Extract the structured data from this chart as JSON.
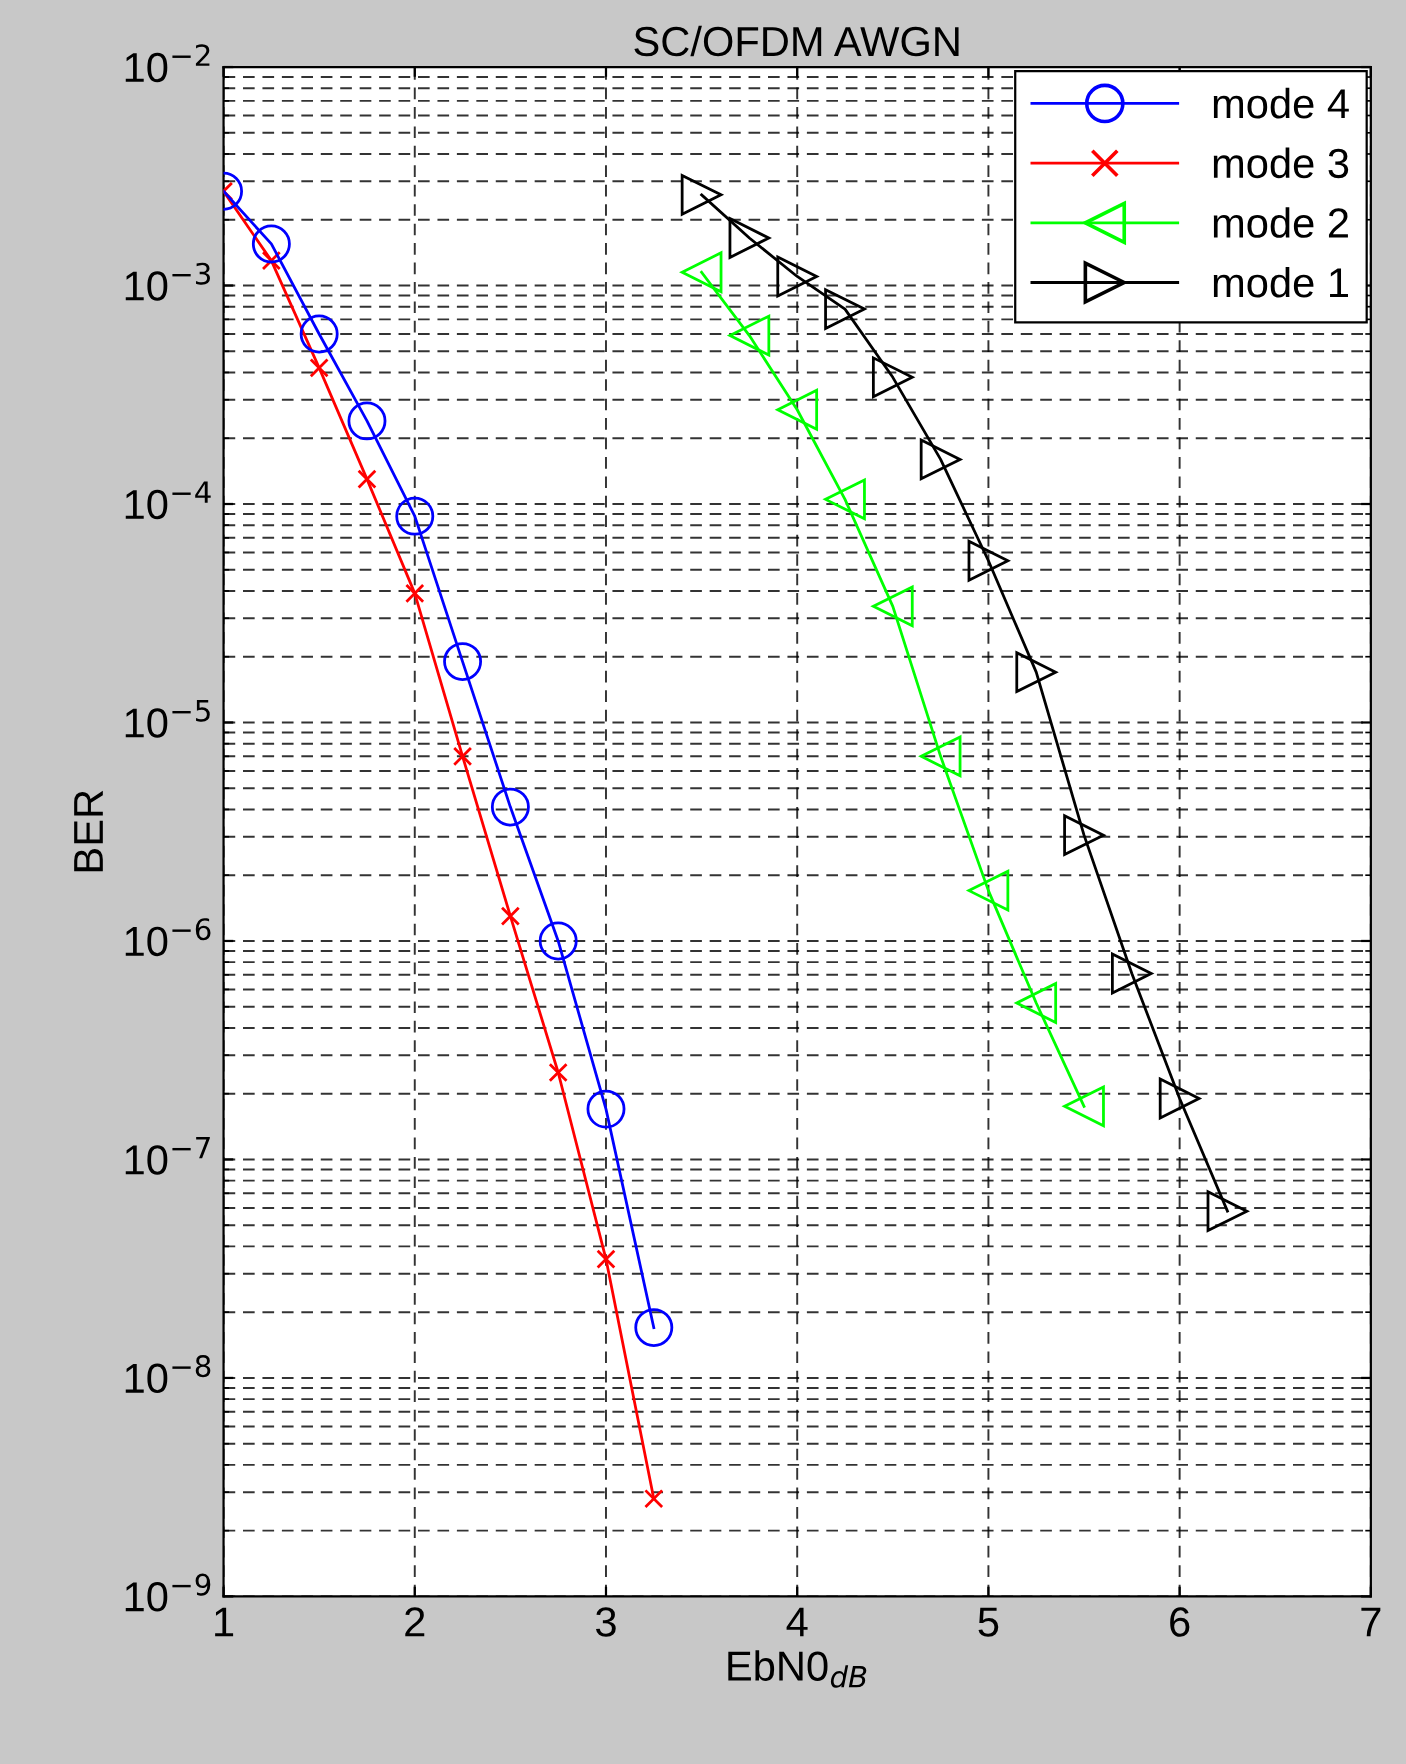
{
  "chart_data": {
    "type": "line",
    "title": "SC/OFDM AWGN",
    "xlabel": "EbN0$_{dB}$",
    "ylabel": "BER",
    "log": "y",
    "xlim": [
      1,
      7
    ],
    "xticks": [
      1,
      2,
      3,
      4,
      5,
      6,
      7
    ],
    "ylim": [
      1e-09,
      0.01
    ],
    "yticks": [
      {
        "value": 1e-09,
        "label": "10$^{−9}$"
      },
      {
        "value": 1e-08,
        "label": "10$^{−8}$"
      },
      {
        "value": 1e-07,
        "label": "10$^{−7}$"
      },
      {
        "value": 1e-06,
        "label": "10$^{−6}$"
      },
      {
        "value": 1e-05,
        "label": "10$^{−5}$"
      },
      {
        "value": 0.0001,
        "label": "10$^{−4}$"
      },
      {
        "value": 0.001,
        "label": "10$^{−3}$"
      },
      {
        "value": 0.01,
        "label": "10$^{−2}$"
      }
    ],
    "grid": true,
    "legend": "top right",
    "line_style": "solid",
    "series": [
      {
        "name": "mode 4",
        "color": "#0000ff",
        "marker": "circle",
        "x": [
          1,
          1.25,
          1.5,
          1.75,
          2,
          2.25,
          2.5,
          2.75,
          3,
          3.25
        ],
        "values": [
          0.0027,
          0.00155,
          0.0006,
          0.00024,
          8.8e-05,
          1.9e-05,
          4.1e-06,
          1e-06,
          1.7e-07,
          1.7e-08
        ]
      },
      {
        "name": "mode 3",
        "color": "#ff0000",
        "marker": "cross",
        "x": [
          1,
          1.25,
          1.5,
          1.75,
          2,
          2.25,
          2.5,
          2.75,
          3,
          3.25
        ],
        "values": [
          0.0027,
          0.0013,
          0.00042,
          0.00013,
          3.9e-05,
          7e-06,
          1.3e-06,
          2.5e-07,
          3.5e-08,
          2.8e-09
        ]
      },
      {
        "name": "mode 2",
        "color": "#00ff00",
        "marker": "triangle-left",
        "x": [
          3.5,
          3.75,
          4,
          4.25,
          4.5,
          4.75,
          5,
          5.25,
          5.5
        ],
        "values": [
          0.00115,
          0.00059,
          0.00027,
          0.000105,
          3.4e-05,
          7e-06,
          1.7e-06,
          5.2e-07,
          1.75e-07
        ]
      },
      {
        "name": "mode 1",
        "color": "#000000",
        "marker": "triangle-right",
        "x": [
          3.5,
          3.75,
          4,
          4.25,
          4.5,
          4.75,
          5,
          5.25,
          5.5,
          5.75,
          6,
          6.25
        ],
        "values": [
          0.0026,
          0.00165,
          0.0011,
          0.00078,
          0.00038,
          0.00016,
          5.5e-05,
          1.7e-05,
          3.05e-06,
          7.1e-07,
          1.9e-07,
          5.8e-08
        ]
      }
    ]
  }
}
